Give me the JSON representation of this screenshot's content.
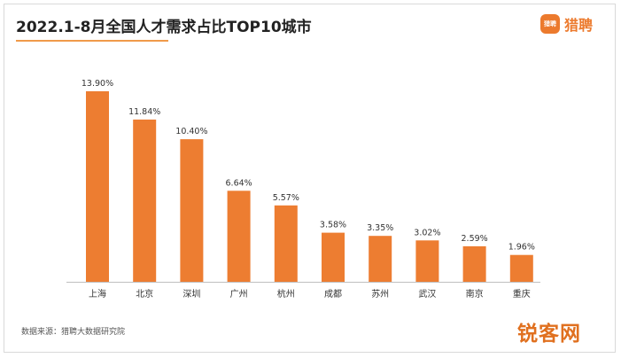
{
  "header": {
    "title": "2022.1-8月全国人才需求占比TOP10城市"
  },
  "brand": {
    "badge_text": "猎聘",
    "name": "猎聘",
    "color": "#ec7a2d"
  },
  "footer": {
    "source": "数据来源：猎聘大数据研究院"
  },
  "watermark": {
    "text": "锐客网"
  },
  "colors": {
    "bar": "#ed7d31",
    "axis": "#bfbfbf",
    "title_rule": "#f09a4a"
  },
  "chart_data": {
    "type": "bar",
    "title": "2022.1-8月全国人才需求占比TOP10城市",
    "xlabel": "",
    "ylabel": "",
    "categories": [
      "上海",
      "北京",
      "深圳",
      "广州",
      "杭州",
      "成都",
      "苏州",
      "武汉",
      "南京",
      "重庆"
    ],
    "values": [
      13.9,
      11.84,
      10.4,
      6.64,
      5.57,
      3.58,
      3.35,
      3.02,
      2.59,
      1.96
    ],
    "value_labels": [
      "13.90%",
      "11.84%",
      "10.40%",
      "6.64%",
      "5.57%",
      "3.58%",
      "3.35%",
      "3.02%",
      "2.59%",
      "1.96%"
    ],
    "ylim": [
      0,
      13.9
    ],
    "grid": false,
    "legend": "none"
  }
}
